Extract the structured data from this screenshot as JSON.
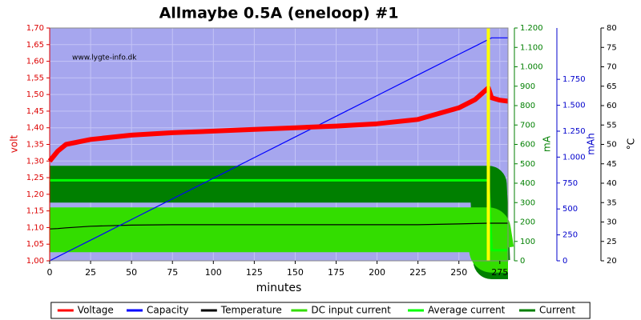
{
  "chart_data": {
    "type": "line",
    "title": "Allmaybe 0.5A (eneloop) #1",
    "annotation": "www.lygte-info.dk",
    "xlabel": "minutes",
    "ylabel": "volt",
    "y2label": "mA",
    "y3label": "mAh",
    "y4label": "°C",
    "grid": true,
    "legend": "bottom",
    "vline": {
      "x": 268,
      "color": "#ffff00"
    },
    "x": [
      0,
      5,
      10,
      25,
      50,
      75,
      100,
      125,
      150,
      175,
      200,
      225,
      250,
      260,
      268,
      270,
      275,
      280
    ],
    "xlim": [
      0,
      280
    ],
    "xticks": [
      0,
      25,
      50,
      75,
      100,
      125,
      150,
      175,
      200,
      225,
      250,
      275
    ],
    "ylim": [
      1.0,
      1.7
    ],
    "yticks": [
      {
        "value": 1.0,
        "label": "1,00"
      },
      {
        "value": 1.05,
        "label": "1,05"
      },
      {
        "value": 1.1,
        "label": "1,10"
      },
      {
        "value": 1.15,
        "label": "1,15"
      },
      {
        "value": 1.2,
        "label": "1,20"
      },
      {
        "value": 1.25,
        "label": "1,25"
      },
      {
        "value": 1.3,
        "label": "1,30"
      },
      {
        "value": 1.35,
        "label": "1,35"
      },
      {
        "value": 1.4,
        "label": "1,40"
      },
      {
        "value": 1.45,
        "label": "1,45"
      },
      {
        "value": 1.5,
        "label": "1,50"
      },
      {
        "value": 1.55,
        "label": "1,55"
      },
      {
        "value": 1.6,
        "label": "1,60"
      },
      {
        "value": 1.65,
        "label": "1,65"
      },
      {
        "value": 1.7,
        "label": "1,70"
      }
    ],
    "y2lim": [
      0,
      1200
    ],
    "y2ticks": [
      0,
      100,
      200,
      300,
      400,
      500,
      600,
      700,
      800,
      900,
      {
        "value": 1000,
        "label": "1.000"
      },
      {
        "value": 1100,
        "label": "1.100"
      },
      {
        "value": 1200,
        "label": "1.200"
      }
    ],
    "y3lim": [
      0,
      2245
    ],
    "y3ticks": [
      0,
      250,
      500,
      750,
      {
        "value": 1000,
        "label": "1.000"
      },
      {
        "value": 1250,
        "label": "1.250"
      },
      {
        "value": 1500,
        "label": "1.500"
      },
      {
        "value": 1750,
        "label": "1.750"
      }
    ],
    "y4lim": [
      20,
      80
    ],
    "y4ticks": [
      20,
      25,
      30,
      35,
      40,
      45,
      50,
      55,
      60,
      65,
      70,
      75,
      80
    ],
    "series": [
      {
        "name": "Voltage",
        "color": "#ff0000",
        "axis": "y",
        "values": [
          1.3,
          1.33,
          1.35,
          1.365,
          1.378,
          1.385,
          1.39,
          1.395,
          1.4,
          1.405,
          1.412,
          1.425,
          1.46,
          1.485,
          1.52,
          1.49,
          1.483,
          1.48
        ]
      },
      {
        "name": "Capacity",
        "color": "#0000ff",
        "axis": "y3",
        "values": [
          0,
          40,
          80,
          199,
          398,
          597,
          796,
          995,
          1194,
          1394,
          1593,
          1792,
          1991,
          2070,
          2134,
          2150,
          2150,
          2150
        ]
      },
      {
        "name": "Temperature",
        "color": "#000000",
        "axis": "y4",
        "values": [
          28.2,
          28.3,
          28.5,
          28.9,
          29.2,
          29.3,
          29.3,
          29.3,
          29.3,
          29.3,
          29.3,
          29.3,
          29.5,
          29.6,
          29.7,
          29.7,
          29.7,
          29.7
        ]
      },
      {
        "name": "DC input current",
        "color": "#33dd00",
        "axis": "y2",
        "values": [
          160,
          160,
          160,
          160,
          160,
          160,
          160,
          160,
          160,
          160,
          160,
          160,
          160,
          160,
          160,
          55,
          55,
          55
        ]
      },
      {
        "name": "Average current",
        "color": "#00ff00",
        "axis": "y2",
        "values": [
          415,
          415,
          415,
          415,
          415,
          415,
          415,
          415,
          415,
          415,
          415,
          415,
          415,
          415,
          415,
          55,
          55,
          55
        ]
      },
      {
        "name": "Current",
        "color": "#007f00",
        "axis": "y2",
        "values": [
          395,
          395,
          395,
          395,
          395,
          395,
          395,
          395,
          395,
          395,
          395,
          395,
          395,
          395,
          395,
          0,
          0,
          0
        ]
      }
    ]
  }
}
